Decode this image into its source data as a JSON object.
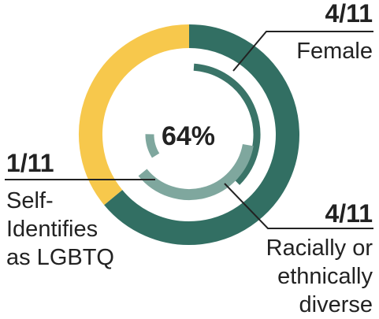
{
  "colors": {
    "outer_accent": "#326f63",
    "outer_rest": "#f7c84c",
    "inner_dark": "#3a7468",
    "inner_light": "#7fa79e",
    "text": "#222222",
    "line": "#222222"
  },
  "chart_data": {
    "type": "donut",
    "center_label": "64%",
    "rings": [
      {
        "name": "Female",
        "fraction_label": "4/11",
        "value": 4,
        "total": 11
      },
      {
        "name": "Racially or ethnically diverse",
        "fraction_label": "4/11",
        "value": 4,
        "total": 11
      },
      {
        "name": "Self-Identifies as LGBTQ",
        "fraction_label": "1/11",
        "value": 1,
        "total": 11
      }
    ],
    "outer_ring": {
      "value_fraction": 0.64
    }
  },
  "labels": {
    "female": {
      "fraction": "4/11",
      "text_lines": [
        "Female"
      ]
    },
    "diverse": {
      "fraction": "4/11",
      "text_lines": [
        "Racially or",
        "ethnically",
        "diverse"
      ]
    },
    "lgbtq": {
      "fraction": "1/11",
      "text_lines": [
        "Self-",
        "Identifies",
        "as LGBTQ"
      ]
    }
  }
}
